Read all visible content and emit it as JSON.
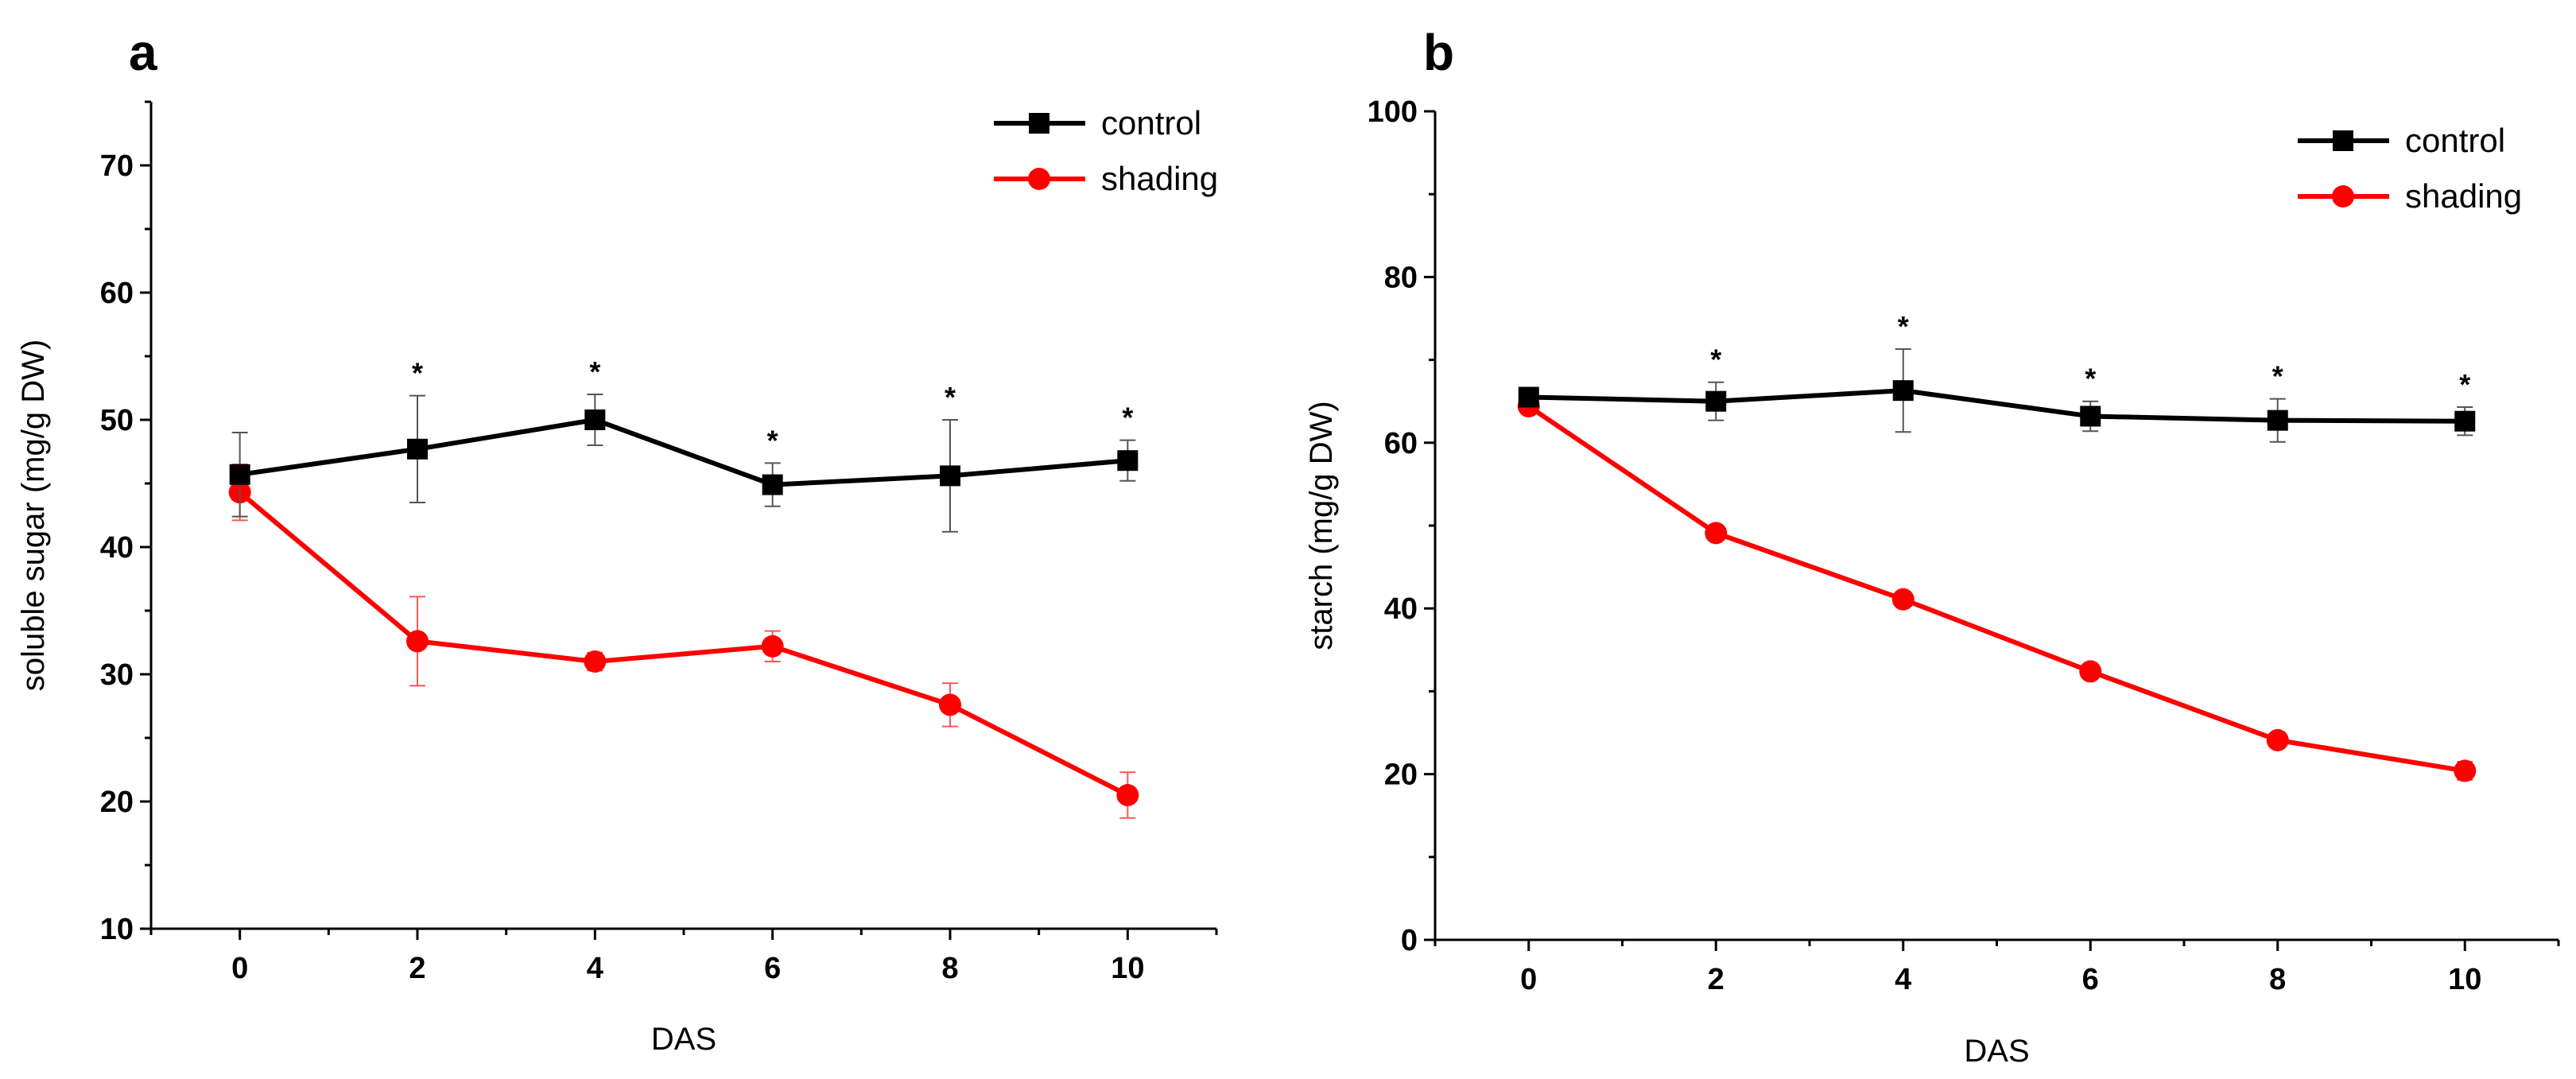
{
  "chart_data": [
    {
      "type": "line",
      "panel_label": "a",
      "xlabel": "DAS",
      "ylabel": "soluble sugar (mg/g DW)",
      "x": [
        0,
        2,
        4,
        6,
        8,
        10
      ],
      "xlim": [
        -1,
        11
      ],
      "ylim": [
        10,
        75
      ],
      "yticks": [
        10,
        20,
        30,
        40,
        50,
        60,
        70
      ],
      "xticks": [
        0,
        2,
        4,
        6,
        8,
        10
      ],
      "legend_position": "top-right",
      "series": [
        {
          "name": "control",
          "color": "#000000",
          "marker": "square",
          "values": [
            45.7,
            47.7,
            50.0,
            44.9,
            45.6,
            46.8
          ],
          "errors": [
            3.3,
            4.2,
            2.0,
            1.7,
            4.4,
            1.6
          ]
        },
        {
          "name": "shading",
          "color": "#ff0000",
          "marker": "circle",
          "values": [
            44.3,
            32.6,
            31.0,
            32.2,
            27.6,
            20.5
          ],
          "errors": [
            2.2,
            3.5,
            0.7,
            1.2,
            1.7,
            1.8
          ]
        }
      ],
      "significance": {
        "symbol": "*",
        "at": [
          2,
          4,
          6,
          8,
          10
        ]
      }
    },
    {
      "type": "line",
      "panel_label": "b",
      "xlabel": "DAS",
      "ylabel": "starch (mg/g DW)",
      "x": [
        0,
        2,
        4,
        6,
        8,
        10
      ],
      "xlim": [
        -1,
        11
      ],
      "ylim": [
        0,
        100
      ],
      "yticks": [
        0,
        20,
        40,
        60,
        80,
        100
      ],
      "xticks": [
        0,
        2,
        4,
        6,
        8,
        10
      ],
      "legend_position": "top-right",
      "series": [
        {
          "name": "control",
          "color": "#000000",
          "marker": "square",
          "values": [
            65.5,
            65.0,
            66.3,
            63.2,
            62.7,
            62.6
          ],
          "errors": [
            1.0,
            2.3,
            5.0,
            1.8,
            2.6,
            1.7
          ]
        },
        {
          "name": "shading",
          "color": "#ff0000",
          "marker": "circle",
          "values": [
            64.4,
            49.1,
            41.1,
            32.4,
            24.1,
            20.4
          ],
          "errors": [
            0.8,
            0.6,
            0.5,
            0.6,
            0.6,
            1.1
          ]
        }
      ],
      "significance": {
        "symbol": "*",
        "at": [
          2,
          4,
          6,
          8,
          10
        ]
      }
    }
  ]
}
